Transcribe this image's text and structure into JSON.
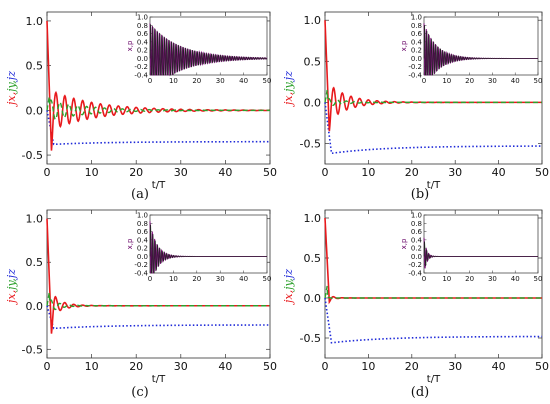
{
  "colors": {
    "jx": "#e8191c",
    "jy": "#2ca02c",
    "jz": "#1f2ad8",
    "inset": "#7a0077"
  },
  "chart_data": [
    {
      "type": "line",
      "caption": "(a)",
      "xlabel": "t/T",
      "ylabel_parts": [
        "jx",
        "jy",
        "jz"
      ],
      "xlim": [
        0,
        50
      ],
      "ylim": [
        -0.6,
        1.1
      ],
      "xticks": [
        "0",
        "10",
        "20",
        "30",
        "40",
        "50"
      ],
      "yticks": [
        "-0.5",
        "0.0",
        "0.5",
        "1.0"
      ],
      "series": {
        "jx": {
          "initial": 1.0,
          "first_min": -0.45,
          "amplitude": 0.22,
          "decay": 0.1,
          "period": 2.0
        },
        "jy": {
          "amplitude": 0.12,
          "decay": 0.12,
          "period": 2.0
        },
        "jz": {
          "plateau": -0.35,
          "dip": -0.38
        }
      },
      "inset": {
        "ylabel": "x,p",
        "xlim": [
          0,
          50
        ],
        "ylim": [
          -0.4,
          1.0
        ],
        "xticks": [
          "0",
          "10",
          "20",
          "30",
          "40",
          "50"
        ],
        "yticks": [
          "-0.4",
          "-0.2",
          "0.0",
          "0.2",
          "0.4",
          "0.6",
          "0.8",
          "1.0"
        ],
        "amplitude": 0.85,
        "decay": 0.08,
        "period": 1.0
      }
    },
    {
      "type": "line",
      "caption": "(b)",
      "xlabel": "t/T",
      "ylabel_parts": [
        "jx",
        "jy",
        "jz"
      ],
      "xlim": [
        0,
        50
      ],
      "ylim": [
        -0.75,
        1.1
      ],
      "xticks": [
        "0",
        "10",
        "20",
        "30",
        "40",
        "50"
      ],
      "yticks": [
        "-0.5",
        "0.0",
        "0.5",
        "1.0"
      ],
      "series": {
        "jx": {
          "initial": 1.0,
          "first_min": -0.35,
          "amplitude": 0.22,
          "decay": 0.22,
          "period": 2.0
        },
        "jy": {
          "amplitude": 0.05,
          "decay": 0.25,
          "period": 2.0
        },
        "jz": {
          "plateau": -0.53,
          "dip": -0.62
        }
      },
      "inset": {
        "ylabel": "x,p",
        "xlim": [
          0,
          50
        ],
        "ylim": [
          -0.4,
          1.0
        ],
        "xticks": [
          "0",
          "10",
          "20",
          "30",
          "40",
          "50"
        ],
        "yticks": [
          "-0.4",
          "-0.2",
          "0.0",
          "0.2",
          "0.4",
          "0.6",
          "0.8",
          "1.0"
        ],
        "amplitude": 0.85,
        "decay": 0.18,
        "period": 1.0
      }
    },
    {
      "type": "line",
      "caption": "(c)",
      "xlabel": "t/T",
      "ylabel_parts": [
        "jx",
        "jy",
        "jz"
      ],
      "xlim": [
        0,
        50
      ],
      "ylim": [
        -0.6,
        1.1
      ],
      "xticks": [
        "0",
        "10",
        "20",
        "30",
        "40",
        "50"
      ],
      "yticks": [
        "-0.5",
        "0.0",
        "0.5",
        "1.0"
      ],
      "series": {
        "jx": {
          "initial": 1.0,
          "first_min": -0.32,
          "amplitude": 0.12,
          "decay": 0.4,
          "period": 2.0
        },
        "jy": {
          "amplitude": 0.08,
          "decay": 0.45,
          "period": 2.0
        },
        "jz": {
          "plateau": -0.22,
          "dip": -0.26
        }
      },
      "inset": {
        "ylabel": "x,p",
        "xlim": [
          0,
          50
        ],
        "ylim": [
          -0.4,
          1.0
        ],
        "xticks": [
          "0",
          "10",
          "20",
          "30",
          "40",
          "50"
        ],
        "yticks": [
          "-0.4",
          "-0.2",
          "0.0",
          "0.2",
          "0.4",
          "0.6",
          "0.8",
          "1.0"
        ],
        "amplitude": 0.85,
        "decay": 0.35,
        "period": 1.0
      }
    },
    {
      "type": "line",
      "caption": "(d)",
      "xlabel": "t/T",
      "ylabel_parts": [
        "jx",
        "jy",
        "jz"
      ],
      "xlim": [
        0,
        50
      ],
      "ylim": [
        -0.75,
        1.1
      ],
      "xticks": [
        "0",
        "10",
        "20",
        "30",
        "40",
        "50"
      ],
      "yticks": [
        "-0.5",
        "0.0",
        "0.5",
        "1.0"
      ],
      "series": {
        "jx": {
          "initial": 1.0,
          "first_min": -0.05,
          "amplitude": 0.03,
          "decay": 0.8,
          "period": 2.0
        },
        "jy": {
          "amplitude": 0.01,
          "decay": 0.9,
          "period": 2.0
        },
        "jz": {
          "plateau": -0.48,
          "dip": -0.56
        }
      },
      "inset": {
        "ylabel": "x,p",
        "xlim": [
          0,
          50
        ],
        "ylim": [
          -0.4,
          1.0
        ],
        "xticks": [
          "0",
          "10",
          "20",
          "30",
          "40",
          "50"
        ],
        "yticks": [
          "-0.4",
          "-0.2",
          "0.0",
          "0.2",
          "0.4",
          "0.6",
          "0.8",
          "1.0"
        ],
        "amplitude": 0.45,
        "decay": 0.9,
        "period": 1.0
      }
    }
  ]
}
